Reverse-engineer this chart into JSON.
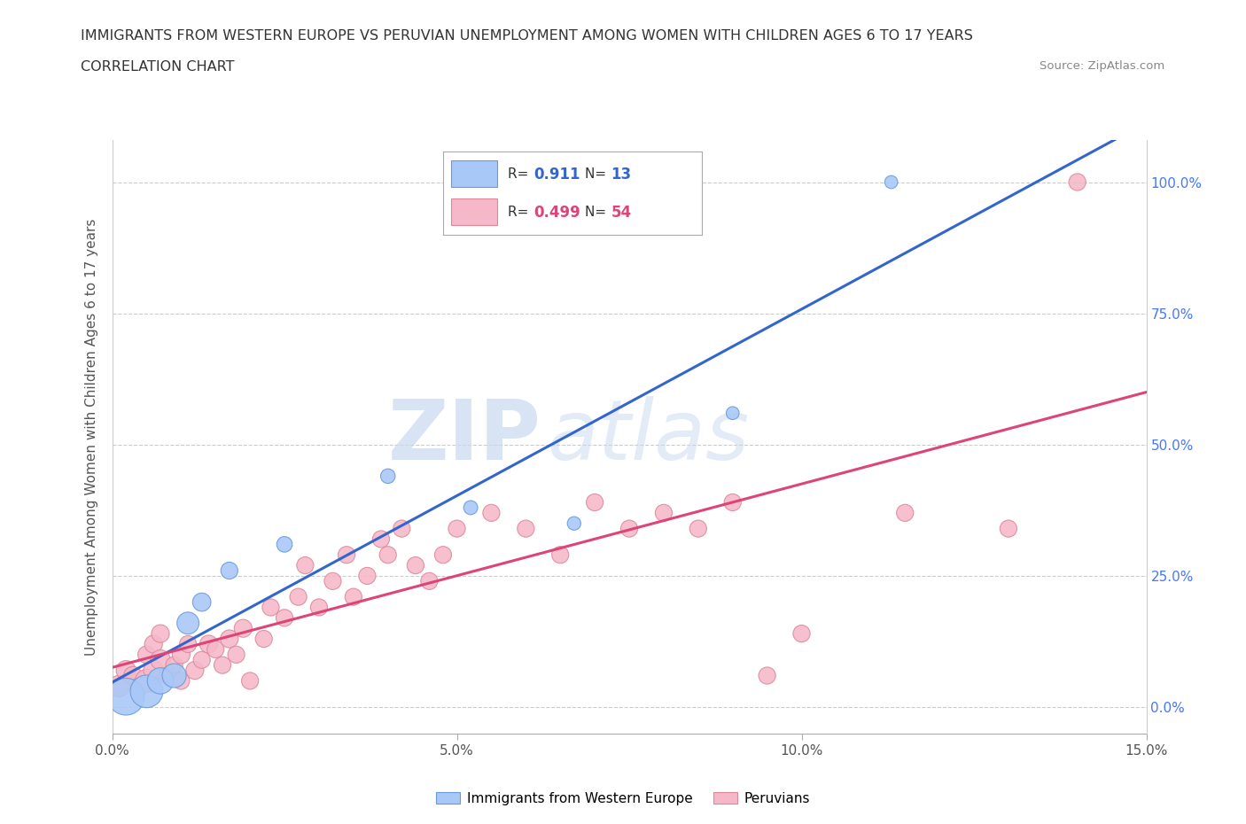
{
  "title_line1": "IMMIGRANTS FROM WESTERN EUROPE VS PERUVIAN UNEMPLOYMENT AMONG WOMEN WITH CHILDREN AGES 6 TO 17 YEARS",
  "title_line2": "CORRELATION CHART",
  "source": "Source: ZipAtlas.com",
  "ylabel": "Unemployment Among Women with Children Ages 6 to 17 years",
  "xlim": [
    0.0,
    0.15
  ],
  "ylim": [
    -0.05,
    1.08
  ],
  "xticks": [
    0.0,
    0.05,
    0.1,
    0.15
  ],
  "xticklabels": [
    "0.0%",
    "5.0%",
    "10.0%",
    "15.0%"
  ],
  "yticks": [
    0.0,
    0.25,
    0.5,
    0.75,
    1.0
  ],
  "left_yticklabels": [
    "",
    "",
    "",
    "",
    ""
  ],
  "right_yticklabels": [
    "0.0%",
    "25.0%",
    "50.0%",
    "75.0%",
    "100.0%"
  ],
  "blue_R": "0.911",
  "blue_N": "13",
  "pink_R": "0.499",
  "pink_N": "54",
  "blue_fill": "#a8c8f8",
  "blue_edge": "#6699dd",
  "blue_line": "#3366cc",
  "pink_fill": "#f5b8c8",
  "pink_edge": "#dd8899",
  "pink_line": "#dd4477",
  "watermark_zip": "ZIP",
  "watermark_atlas": "atlas",
  "bg": "#ffffff",
  "grid_color": "#cccccc",
  "blue_x": [
    0.002,
    0.005,
    0.007,
    0.009,
    0.011,
    0.013,
    0.017,
    0.025,
    0.04,
    0.052,
    0.067,
    0.09,
    0.113
  ],
  "blue_y": [
    0.02,
    0.03,
    0.05,
    0.06,
    0.16,
    0.2,
    0.26,
    0.31,
    0.44,
    0.38,
    0.35,
    0.56,
    1.0
  ],
  "blue_s": [
    900,
    700,
    450,
    380,
    320,
    220,
    190,
    160,
    140,
    130,
    120,
    110,
    110
  ],
  "pink_x": [
    0.001,
    0.002,
    0.003,
    0.004,
    0.005,
    0.005,
    0.006,
    0.006,
    0.007,
    0.007,
    0.008,
    0.009,
    0.01,
    0.01,
    0.011,
    0.012,
    0.013,
    0.014,
    0.015,
    0.016,
    0.017,
    0.018,
    0.019,
    0.02,
    0.022,
    0.023,
    0.025,
    0.027,
    0.028,
    0.03,
    0.032,
    0.034,
    0.035,
    0.037,
    0.039,
    0.04,
    0.042,
    0.044,
    0.046,
    0.048,
    0.05,
    0.055,
    0.06,
    0.065,
    0.07,
    0.075,
    0.08,
    0.085,
    0.09,
    0.095,
    0.1,
    0.115,
    0.13,
    0.14
  ],
  "pink_y": [
    0.04,
    0.07,
    0.06,
    0.04,
    0.05,
    0.1,
    0.07,
    0.12,
    0.09,
    0.14,
    0.06,
    0.08,
    0.1,
    0.05,
    0.12,
    0.07,
    0.09,
    0.12,
    0.11,
    0.08,
    0.13,
    0.1,
    0.15,
    0.05,
    0.13,
    0.19,
    0.17,
    0.21,
    0.27,
    0.19,
    0.24,
    0.29,
    0.21,
    0.25,
    0.32,
    0.29,
    0.34,
    0.27,
    0.24,
    0.29,
    0.34,
    0.37,
    0.34,
    0.29,
    0.39,
    0.34,
    0.37,
    0.34,
    0.39,
    0.06,
    0.14,
    0.37,
    0.34,
    1.0
  ],
  "pink_s": [
    300,
    250,
    220,
    220,
    350,
    200,
    260,
    210,
    260,
    210,
    190,
    190,
    210,
    190,
    190,
    210,
    190,
    210,
    190,
    190,
    210,
    190,
    210,
    190,
    190,
    190,
    190,
    190,
    190,
    190,
    190,
    190,
    190,
    190,
    190,
    190,
    190,
    190,
    190,
    190,
    190,
    190,
    190,
    190,
    190,
    190,
    190,
    190,
    190,
    190,
    190,
    190,
    190,
    190
  ]
}
